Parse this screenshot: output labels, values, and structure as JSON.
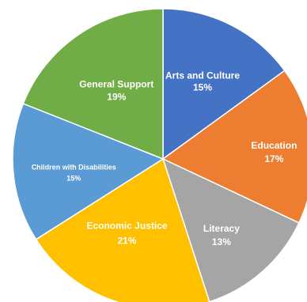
{
  "chart_data": {
    "type": "pie",
    "start_angle_deg": 0,
    "direction": "clockwise",
    "slices": [
      {
        "label": "Arts and Culture",
        "value": 15,
        "value_label": "15%",
        "color": "#4472c4"
      },
      {
        "label": "Education",
        "value": 17,
        "value_label": "17%",
        "color": "#ed7d31"
      },
      {
        "label": "Literacy",
        "value": 13,
        "value_label": "13%",
        "color": "#a5a5a5"
      },
      {
        "label": "Economic  Justice",
        "value": 21,
        "value_label": "21%",
        "color": "#ffc000"
      },
      {
        "label": "Children with Disabilities",
        "value": 15,
        "value_label": "15%",
        "color": "#5b9bd5"
      },
      {
        "label": "General Support",
        "value": 19,
        "value_label": "19%",
        "color": "#70ad47"
      }
    ]
  }
}
